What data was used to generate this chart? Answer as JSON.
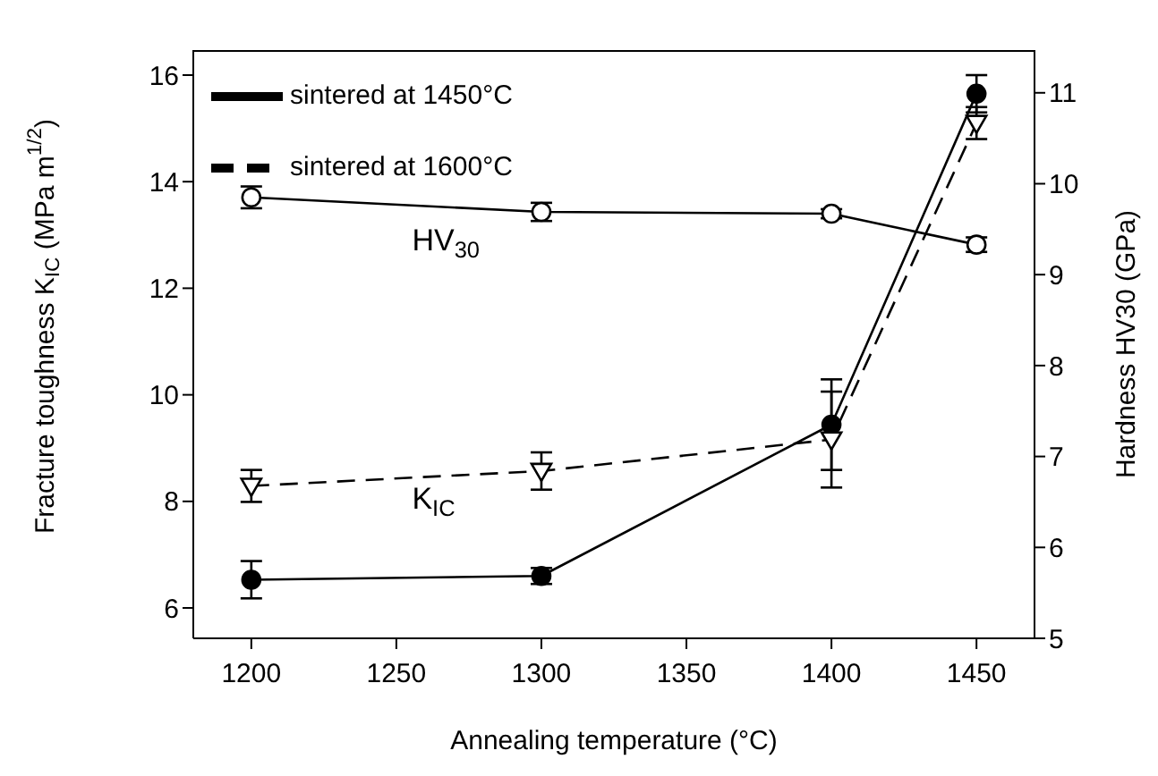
{
  "chart_data": {
    "type": "line",
    "xlabel": "Annealing temperature (°C)",
    "ylabel": "Fracture toughness K$_{IC}$ (MPa m$^{1/2}$)",
    "y2label": "Hardness HV30 (GPa)",
    "x": [
      1200,
      1300,
      1400,
      1450
    ],
    "series": [
      {
        "name": "sintered at 1450°C",
        "color": "#000000",
        "marker": "circle",
        "line_style": "solid",
        "values": [
          6.53,
          6.6,
          9.44,
          15.65
        ],
        "errors": [
          0.35,
          0.15,
          0.85,
          0.35
        ]
      },
      {
        "name": "sintered at 1600°C",
        "color": "#000000",
        "marker": "triangle",
        "line_style": "dashed",
        "values": [
          8.29,
          8.57,
          9.16,
          15.1
        ],
        "errors": [
          0.3,
          0.35,
          0.9,
          0.3
        ]
      },
      {
        "color": "#000000",
        "marker": "circle",
        "line_style": "solid",
        "axis": "y2",
        "values": [
          9.85,
          9.69,
          9.67,
          9.33
        ],
        "errors": [
          0.12,
          0.1,
          0.05,
          0.08
        ]
      }
    ],
    "xlim": [
      1180,
      1470
    ],
    "xticks": [
      1200,
      1250,
      1300,
      1350,
      1400,
      1450
    ],
    "ylim": [
      5.43,
      16.47
    ],
    "yticks": [
      6,
      8,
      10,
      12,
      14,
      16
    ],
    "y2lim": [
      5,
      11.47
    ],
    "y2ticks": [
      5,
      6,
      7,
      8,
      9,
      10,
      11
    ],
    "annotations": [
      "HV$_{30}$",
      "K$_{IC}$"
    ],
    "legend": "top left"
  }
}
